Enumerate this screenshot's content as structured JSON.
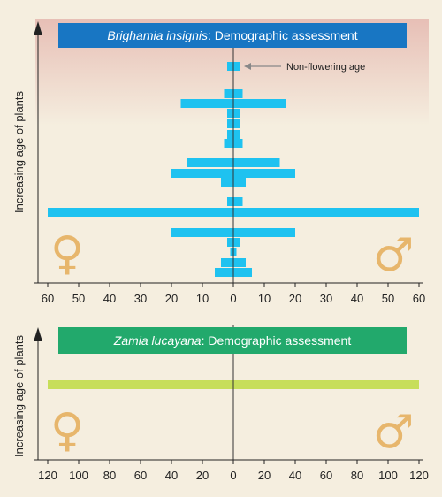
{
  "colors": {
    "background": "#f5eedf",
    "bar": "#1ec2f0",
    "bar2": "#c7de5a",
    "title1_bg": "#1876c3",
    "title2_bg": "#22a96c",
    "symbol": "#e7b66c",
    "gradient_top": "#e9c2b8"
  },
  "chart_data": [
    {
      "type": "bar",
      "orientation": "horizontal-pyramid",
      "title_italic": "Brighamia insignis",
      "title_rest": ": Demographic assessment",
      "ylabel": "Increasing age of plants",
      "xlim": [
        -60,
        60
      ],
      "x_ticks": [
        60,
        50,
        40,
        30,
        20,
        10,
        0,
        10,
        20,
        30,
        40,
        50,
        60
      ],
      "annotation": "Non-flowering age",
      "female_symbol": "♀",
      "male_symbol": "♂",
      "rows": [
        {
          "female": 2,
          "male": 2
        },
        {
          "female": 3,
          "male": 3
        },
        {
          "female": 17,
          "male": 17
        },
        {
          "female": 2,
          "male": 2
        },
        {
          "female": 2,
          "male": 2
        },
        {
          "female": 2,
          "male": 2
        },
        {
          "female": 3,
          "male": 3
        },
        {
          "female": 15,
          "male": 15
        },
        {
          "female": 20,
          "male": 20
        },
        {
          "female": 4,
          "male": 4
        },
        {
          "female": 2,
          "male": 3
        },
        {
          "female": 60,
          "male": 60
        },
        {
          "female": 20,
          "male": 20
        },
        {
          "female": 2,
          "male": 2
        },
        {
          "female": 1,
          "male": 1
        },
        {
          "female": 4,
          "male": 4
        },
        {
          "female": 6,
          "male": 6
        }
      ]
    },
    {
      "type": "bar",
      "orientation": "horizontal-pyramid",
      "title_italic": "Zamia lucayana",
      "title_rest": ": Demographic assessment",
      "ylabel": "Increasing age of plants",
      "xlim": [
        -120,
        120
      ],
      "x_ticks": [
        120,
        100,
        80,
        60,
        40,
        20,
        0,
        20,
        40,
        60,
        80,
        100,
        120
      ],
      "female_symbol": "♀",
      "male_symbol": "♂",
      "rows": [
        {
          "female": 120,
          "male": 120
        }
      ]
    }
  ]
}
